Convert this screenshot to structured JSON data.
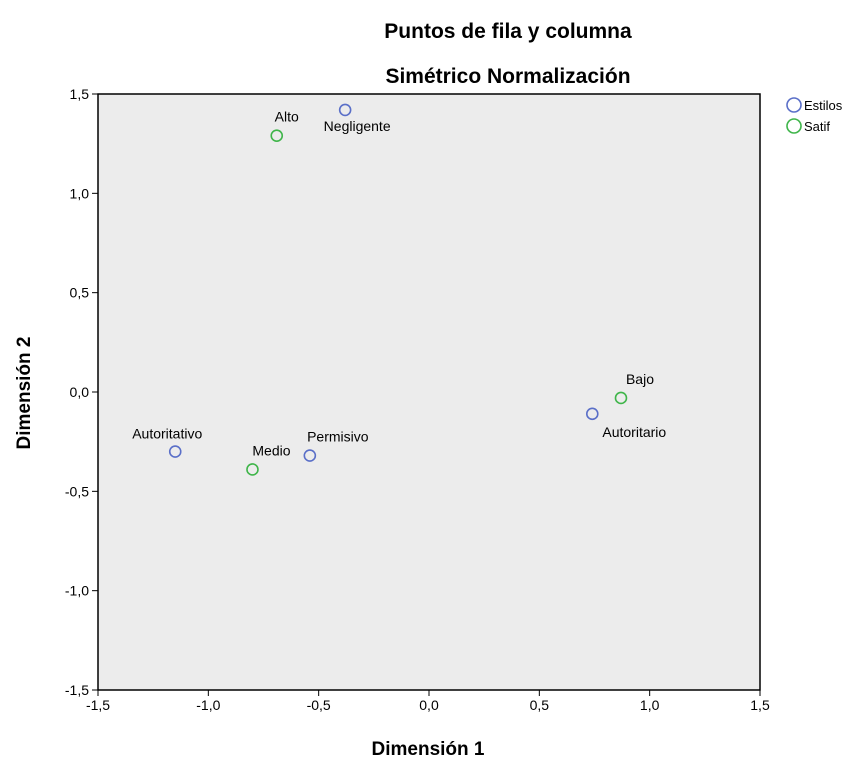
{
  "chart_data": {
    "type": "scatter",
    "title": "Puntos de fila y columna",
    "subtitle": "Simétrico Normalización",
    "xlabel": "Dimensión 1",
    "ylabel": "Dimensión 2",
    "xlim": [
      -1.5,
      1.5
    ],
    "ylim": [
      -1.5,
      1.5
    ],
    "x_ticks": [
      -1.5,
      -1.0,
      -0.5,
      0.0,
      0.5,
      1.0,
      1.5
    ],
    "y_ticks": [
      -1.5,
      -1.0,
      -0.5,
      0.0,
      0.5,
      1.0,
      1.5
    ],
    "x_tick_labels": [
      "-1,5",
      "-1,0",
      "-0,5",
      "0,0",
      "0,5",
      "1,0",
      "1,5"
    ],
    "y_tick_labels": [
      "-1,5",
      "-1,0",
      "-0,5",
      "0,0",
      "0,5",
      "1,0",
      "1,5"
    ],
    "grid": false,
    "legend_position": "top-right",
    "plot_background": "#ececec",
    "series": [
      {
        "name": "Estilos",
        "color": "#5a6fc8",
        "points": [
          {
            "label": "Negligente",
            "x": -0.38,
            "y": 1.42
          },
          {
            "label": "Autoritativo",
            "x": -1.15,
            "y": -0.3
          },
          {
            "label": "Permisivo",
            "x": -0.54,
            "y": -0.32
          },
          {
            "label": "Autoritario",
            "x": 0.74,
            "y": -0.11
          }
        ]
      },
      {
        "name": "Satif",
        "color": "#3fb54a",
        "points": [
          {
            "label": "Alto",
            "x": -0.69,
            "y": 1.29
          },
          {
            "label": "Medio",
            "x": -0.8,
            "y": -0.39
          },
          {
            "label": "Bajo",
            "x": 0.87,
            "y": -0.03
          }
        ]
      }
    ]
  }
}
